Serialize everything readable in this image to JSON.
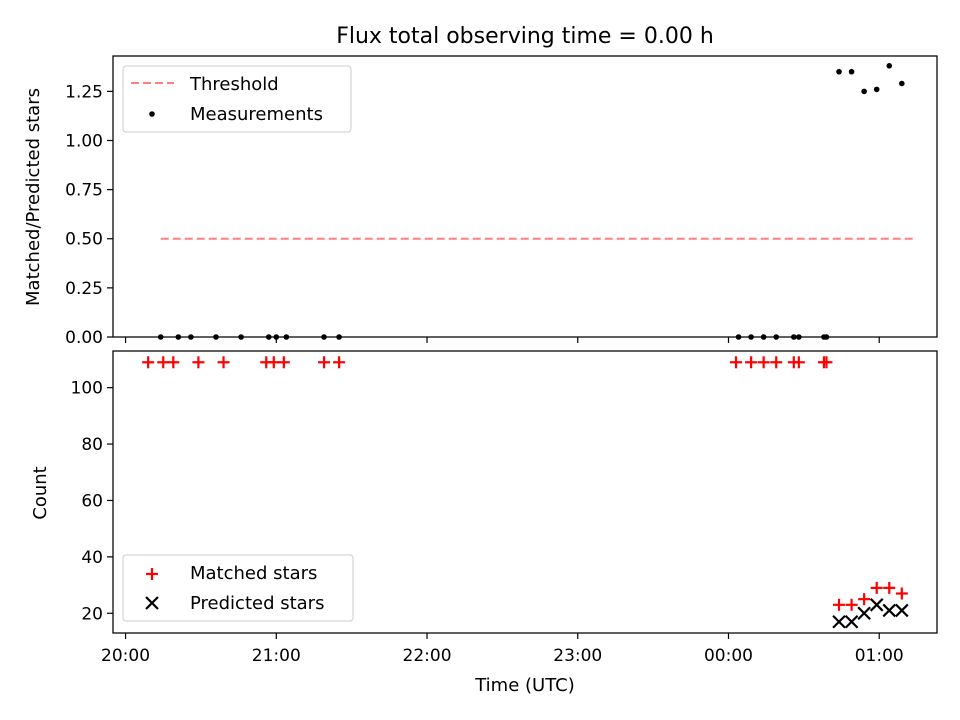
{
  "chart_data": [
    {
      "type": "scatter",
      "title": "Flux total observing time = 0.00 h",
      "ylabel": "Matched/Predicted stars",
      "ylim": [
        0,
        1.43
      ],
      "yticks": [
        0.0,
        0.25,
        0.5,
        0.75,
        1.0,
        1.25
      ],
      "ytick_labels": [
        "0.00",
        "0.25",
        "0.50",
        "0.75",
        "1.00",
        "1.25"
      ],
      "x_shared": true,
      "legend": {
        "position": "upper left",
        "entries": [
          "Threshold",
          "Measurements"
        ]
      },
      "threshold": {
        "name": "Threshold",
        "value": 0.5,
        "x_start": "20:14",
        "x_end": "01:14",
        "color": "#ff7f7f",
        "style": "dashed"
      },
      "series": [
        {
          "name": "Measurements",
          "color": "#000000",
          "marker": "dot",
          "points": [
            [
              "20:14",
              0.0
            ],
            [
              "20:21",
              0.0
            ],
            [
              "20:26",
              0.0
            ],
            [
              "20:36",
              0.0
            ],
            [
              "20:46",
              0.0
            ],
            [
              "20:57",
              0.0
            ],
            [
              "21:00",
              0.0
            ],
            [
              "21:04",
              0.0
            ],
            [
              "21:19",
              0.0
            ],
            [
              "21:25",
              0.0
            ],
            [
              "00:04",
              0.0
            ],
            [
              "00:09",
              0.0
            ],
            [
              "00:14",
              0.0
            ],
            [
              "00:19",
              0.0
            ],
            [
              "00:26",
              0.0
            ],
            [
              "00:28",
              0.0
            ],
            [
              "00:38",
              0.0
            ],
            [
              "00:39",
              0.0
            ],
            [
              "00:44",
              1.35
            ],
            [
              "00:49",
              1.35
            ],
            [
              "00:54",
              1.25
            ],
            [
              "00:59",
              1.26
            ],
            [
              "01:04",
              1.38
            ],
            [
              "01:09",
              1.29
            ]
          ]
        }
      ]
    },
    {
      "type": "scatter",
      "xlabel": "Time (UTC)",
      "ylabel": "Count",
      "ylim": [
        13,
        113
      ],
      "yticks": [
        20,
        40,
        60,
        80,
        100
      ],
      "ytick_labels": [
        "20",
        "40",
        "60",
        "80",
        "100"
      ],
      "xlim": [
        "19:55",
        "01:23"
      ],
      "xticks": [
        "20:00",
        "21:00",
        "22:00",
        "23:00",
        "00:00",
        "01:00"
      ],
      "xtick_labels": [
        "20:00",
        "21:00",
        "22:00",
        "23:00",
        "00:00",
        "01:00"
      ],
      "legend": {
        "position": "lower left",
        "entries": [
          "Matched stars",
          "Predicted stars"
        ]
      },
      "series": [
        {
          "name": "Matched stars",
          "color": "#ff0000",
          "marker": "plus",
          "points": [
            [
              "20:09",
              109
            ],
            [
              "20:15",
              109
            ],
            [
              "20:19",
              109
            ],
            [
              "20:29",
              109
            ],
            [
              "20:39",
              109
            ],
            [
              "20:56",
              109
            ],
            [
              "20:59",
              109
            ],
            [
              "21:03",
              109
            ],
            [
              "21:19",
              109
            ],
            [
              "21:25",
              109
            ],
            [
              "00:03",
              109
            ],
            [
              "00:09",
              109
            ],
            [
              "00:14",
              109
            ],
            [
              "00:19",
              109
            ],
            [
              "00:26",
              109
            ],
            [
              "00:28",
              109
            ],
            [
              "00:38",
              109
            ],
            [
              "00:39",
              109
            ],
            [
              "00:44",
              23
            ],
            [
              "00:49",
              23
            ],
            [
              "00:54",
              25
            ],
            [
              "00:59",
              29
            ],
            [
              "01:04",
              29
            ],
            [
              "01:09",
              27
            ]
          ]
        },
        {
          "name": "Predicted stars",
          "color": "#000000",
          "marker": "x",
          "points": [
            [
              "00:44",
              17
            ],
            [
              "00:49",
              17
            ],
            [
              "00:54",
              20
            ],
            [
              "00:59",
              23
            ],
            [
              "01:04",
              21
            ],
            [
              "01:09",
              21
            ]
          ]
        }
      ]
    }
  ]
}
